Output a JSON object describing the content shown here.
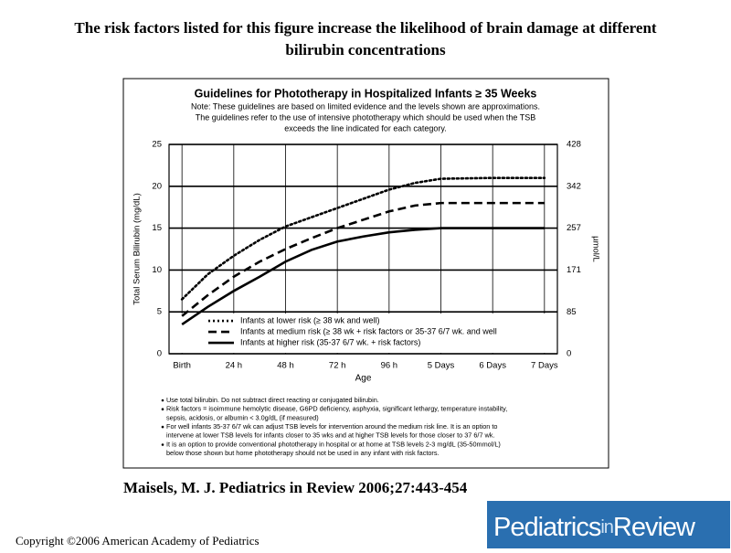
{
  "slide_title": [
    "The risk factors listed for this figure increase the likelihood of brain damage at different",
    "bilirubin concentrations"
  ],
  "citation": "Maisels, M. J. Pediatrics in Review 2006;27:443-454",
  "copyright": "Copyright ©2006 American Academy of Pediatrics",
  "logo": [
    "Pediatrics",
    "in",
    "Review"
  ],
  "chart_data": {
    "type": "line",
    "title": "Guidelines for Phototherapy in Hospitalized Infants ≥ 35 Weeks",
    "note": [
      "Note: These guidelines are based on limited evidence and the levels shown are approximations.",
      "The guidelines refer to the use of intensive phototherapy which should be used when the TSB",
      "exceeds the line indicated for each category."
    ],
    "x_label": "Age",
    "y_label": "Total Serum Bilirubin (mg/dL)",
    "y2_label": "µmol/L",
    "x": [
      0,
      12,
      24,
      36,
      48,
      60,
      72,
      84,
      96,
      108,
      120,
      144,
      168
    ],
    "xlim": [
      -6,
      174
    ],
    "xticks": [
      {
        "value": 0,
        "label": "Birth"
      },
      {
        "value": 24,
        "label": "24 h"
      },
      {
        "value": 48,
        "label": "48 h"
      },
      {
        "value": 72,
        "label": "72 h"
      },
      {
        "value": 96,
        "label": "96 h"
      },
      {
        "value": 120,
        "label": "5 Days"
      },
      {
        "value": 144,
        "label": "6 Days"
      },
      {
        "value": 168,
        "label": "7 Days"
      }
    ],
    "ylim": [
      0,
      25
    ],
    "yticks": [
      0,
      5,
      10,
      15,
      20,
      25
    ],
    "y2lim": [
      0,
      428
    ],
    "y2ticks": [
      0,
      85,
      171,
      257,
      342,
      428
    ],
    "grid": true,
    "legend": "lower left",
    "series": [
      {
        "name": "Infants at lower risk (≥ 38 wk and well)",
        "color": "#000000",
        "line_style": "dotted",
        "values": [
          6.5,
          9.5,
          11.7,
          13.6,
          15.2,
          16.3,
          17.4,
          18.5,
          19.6,
          20.4,
          20.9,
          21,
          21
        ]
      },
      {
        "name": "Infants at medium risk (≥ 38 wk + risk factors or 35-37 6/7 wk. and well",
        "color": "#000000",
        "line_style": "dashed",
        "values": [
          4.5,
          7,
          9.2,
          11,
          12.5,
          13.8,
          15,
          16,
          17,
          17.7,
          18,
          18,
          18
        ]
      },
      {
        "name": "Infants at higher risk (35-37 6/7 wk. + risk factors)",
        "color": "#000000",
        "line_style": "solid",
        "values": [
          3.5,
          5.6,
          7.5,
          9.2,
          11,
          12.4,
          13.4,
          14,
          14.5,
          14.8,
          15,
          15,
          15
        ]
      }
    ],
    "bullets": [
      [
        "Use total bilirubin.  Do not subtract direct reacting or conjugated bilirubin."
      ],
      [
        "Risk factors = isoimmune hemolytic disease, G6PD deficiency, asphyxia, significant lethargy, temperature instability,",
        "sepsis, acidosis, or albumin < 3.0g/dL (if measured)"
      ],
      [
        "For well infants 35-37 6/7 wk can adjust TSB levels for intervention around the medium risk line.  It is an option to",
        "intervene at lower TSB levels for infants closer to 35 wks and at higher TSB levels for those closer to 37 6/7 wk."
      ],
      [
        "It is an option to provide conventional phototherapy in hospital or at home at TSB levels 2-3 mg/dL (35-50mmol/L)",
        "below those shown but home phototherapy should not be used in any infant with risk factors."
      ]
    ]
  }
}
